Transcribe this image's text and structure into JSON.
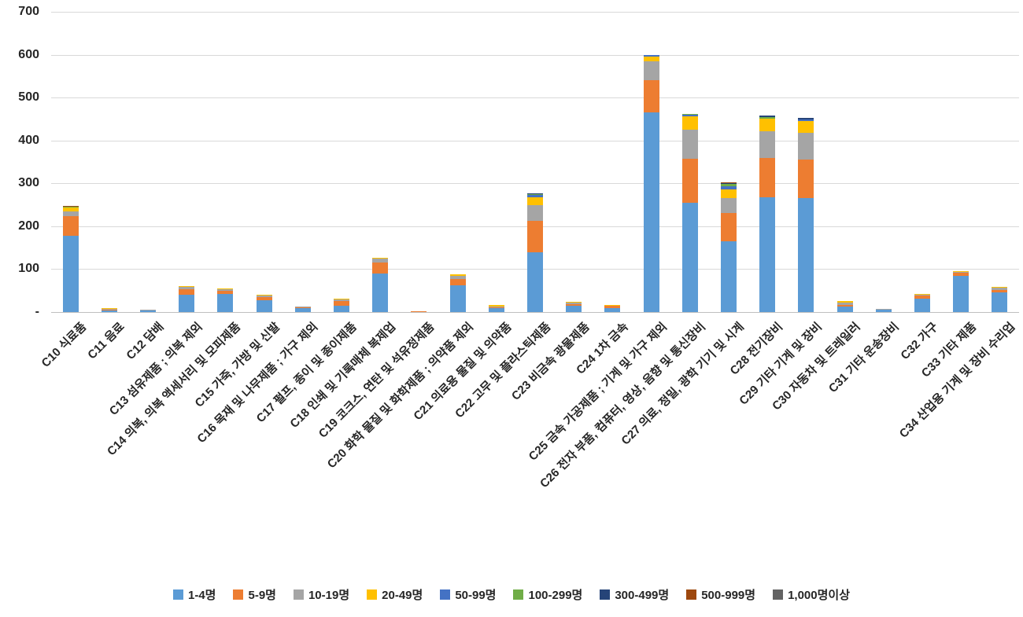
{
  "chart_data": {
    "type": "bar",
    "stacked": true,
    "title": "",
    "xlabel": "",
    "ylabel": "",
    "ylim": [
      0,
      700
    ],
    "grid": true,
    "legend_position": "bottom",
    "y_ticks": [
      {
        "label": "700",
        "value": 700
      },
      {
        "label": "600",
        "value": 600
      },
      {
        "label": "500",
        "value": 500
      },
      {
        "label": "400",
        "value": 400
      },
      {
        "label": "300",
        "value": 300
      },
      {
        "label": "200",
        "value": 200
      },
      {
        "label": "100",
        "value": 100
      },
      {
        "label": "-",
        "value": 0
      }
    ],
    "categories": [
      "C10 식료품",
      "C11 음료",
      "C12 담배",
      "C13 섬유제품 ; 의복 제외",
      "C14 의복, 의복 액세서리 및 모피제품",
      "C15 가죽, 가방 및 신발",
      "C16 목재 및 나무제품 ; 가구 제외",
      "C17 펄프, 종이 및 종이제품",
      "C18 인쇄 및 기록매체 복제업",
      "C19 코크스, 연탄 및 석유정제품",
      "C20 화학 물질 및 화학제품 ; 의약품 제외",
      "C21 의료용 물질 및 의약품",
      "C22 고무 및 플라스틱제품",
      "C23 비금속 광물제품",
      "C24 1차 금속",
      "C25 금속 가공제품 ; 기계 및 가구 제외",
      "C26 전자 부품, 컴퓨터, 영상, 음향 및 통신장비",
      "C27 의료, 정밀, 광학 기기 및 시계",
      "C28 전기장비",
      "C29 기타 기계 및 장비",
      "C30 자동차 및 트레일러",
      "C31 기타 운송장비",
      "C32 가구",
      "C33 기타 제품",
      "C34 산업용 기계 및 장비 수리업"
    ],
    "series": [
      {
        "name": "1-4명",
        "color": "#5B9BD5",
        "values": [
          178,
          4,
          3,
          40,
          42,
          28,
          10,
          14,
          90,
          1,
          62,
          10,
          140,
          14,
          10,
          465,
          255,
          165,
          268,
          265,
          12,
          5,
          32,
          85,
          45
        ]
      },
      {
        "name": "5-9명",
        "color": "#ED7D31",
        "values": [
          45,
          2,
          0,
          13,
          7,
          7,
          2,
          11,
          26,
          1,
          15,
          2,
          72,
          5,
          4,
          75,
          103,
          65,
          92,
          90,
          5,
          0,
          6,
          7,
          7
        ]
      },
      {
        "name": "10-19명",
        "color": "#A5A5A5",
        "values": [
          12,
          3,
          2,
          5,
          4,
          3,
          1,
          4,
          8,
          0,
          8,
          1,
          38,
          3,
          2,
          45,
          68,
          35,
          62,
          62,
          5,
          3,
          3,
          2,
          4
        ]
      },
      {
        "name": "20-49명",
        "color": "#FFC000",
        "values": [
          8,
          1,
          0,
          2,
          2,
          2,
          0,
          3,
          3,
          0,
          3,
          3,
          18,
          1,
          1,
          10,
          30,
          20,
          28,
          28,
          3,
          0,
          2,
          1,
          2
        ]
      },
      {
        "name": "50-99명",
        "color": "#4472C4",
        "values": [
          2,
          0,
          0,
          0,
          0,
          0,
          0,
          0,
          0,
          0,
          0,
          0,
          5,
          0,
          0,
          5,
          4,
          8,
          0,
          4,
          0,
          0,
          0,
          0,
          0
        ]
      },
      {
        "name": "100-299명",
        "color": "#70AD47",
        "values": [
          1,
          0,
          0,
          0,
          0,
          0,
          0,
          0,
          0,
          0,
          0,
          0,
          2,
          0,
          0,
          0,
          2,
          5,
          5,
          0,
          0,
          0,
          0,
          0,
          0
        ]
      },
      {
        "name": "300-499명",
        "color": "#264478",
        "values": [
          1,
          0,
          0,
          0,
          0,
          0,
          0,
          0,
          0,
          0,
          0,
          0,
          2,
          0,
          0,
          0,
          0,
          3,
          3,
          3,
          0,
          0,
          0,
          0,
          0
        ]
      },
      {
        "name": "500-999명",
        "color": "#9E480E",
        "values": [
          1,
          0,
          0,
          0,
          0,
          0,
          0,
          0,
          0,
          0,
          0,
          0,
          0,
          0,
          0,
          0,
          0,
          2,
          0,
          0,
          0,
          0,
          0,
          0,
          0
        ]
      },
      {
        "name": "1,000명이상",
        "color": "#636363",
        "values": [
          0,
          0,
          0,
          0,
          0,
          0,
          0,
          0,
          0,
          0,
          0,
          0,
          0,
          0,
          0,
          0,
          0,
          0,
          0,
          0,
          0,
          0,
          0,
          0,
          0
        ]
      }
    ]
  }
}
